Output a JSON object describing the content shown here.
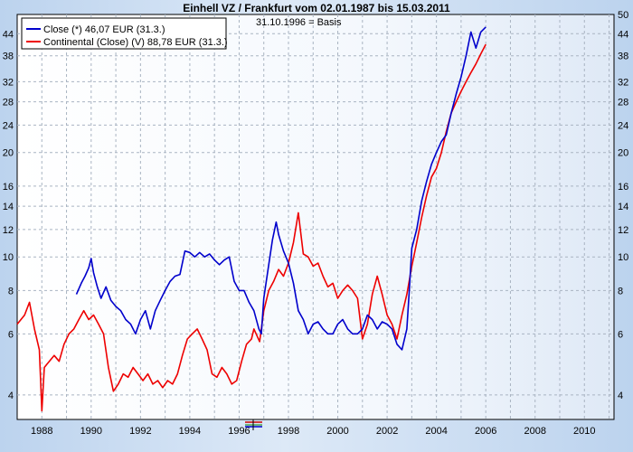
{
  "chart_data": {
    "type": "line",
    "title": "Einhell VZ / Frankfurt vom 02.01.1987 bis 15.03.2011",
    "annotation": "31.10.1996 = Basis",
    "y_scale": "log",
    "ylim": [
      3.4,
      50
    ],
    "xlim": [
      1987.0,
      2011.2
    ],
    "grid": true,
    "legend": "top-left",
    "x_ticks": [
      "1988",
      "1990",
      "1992",
      "1994",
      "1996",
      "1998",
      "2000",
      "2002",
      "2004",
      "2006",
      "2008",
      "2010"
    ],
    "y_ticks_left": [
      "4",
      "6",
      "8",
      "10",
      "12",
      "14",
      "16",
      "20",
      "24",
      "28",
      "32",
      "38",
      "44"
    ],
    "y_ticks_right": [
      "4",
      "6",
      "8",
      "10",
      "12",
      "14",
      "16",
      "20",
      "24",
      "28",
      "32",
      "38",
      "44",
      "50"
    ],
    "series": [
      {
        "name": "Close (*) 46,07 EUR (31.3.)",
        "color": "#0000cc",
        "x": [
          1989.4,
          1989.6,
          1989.75,
          1989.9,
          1990.0,
          1990.1,
          1990.25,
          1990.4,
          1990.6,
          1990.8,
          1991.0,
          1991.2,
          1991.4,
          1991.6,
          1991.8,
          1992.0,
          1992.2,
          1992.4,
          1992.6,
          1992.8,
          1993.0,
          1993.2,
          1993.4,
          1993.6,
          1993.8,
          1994.0,
          1994.2,
          1994.4,
          1994.6,
          1994.8,
          1995.0,
          1995.2,
          1995.4,
          1995.6,
          1995.8,
          1996.0,
          1996.2,
          1996.4,
          1996.6,
          1996.8,
          1996.9,
          1997.0,
          1997.2,
          1997.35,
          1997.5,
          1997.6,
          1997.8,
          1998.0,
          1998.2,
          1998.4,
          1998.6,
          1998.8,
          1999.0,
          1999.2,
          1999.4,
          1999.6,
          1999.8,
          2000.0,
          2000.2,
          2000.4,
          2000.6,
          2000.8,
          2001.0,
          2001.2,
          2001.4,
          2001.6,
          2001.8,
          2002.0,
          2002.2,
          2002.4,
          2002.6,
          2002.8,
          2002.9,
          2003.0,
          2003.2,
          2003.4,
          2003.6,
          2003.8,
          2004.0,
          2004.2,
          2004.4,
          2004.6,
          2004.8,
          2005.0,
          2005.2,
          2005.4,
          2005.6,
          2005.8,
          2006.0
        ],
        "y": [
          7.8,
          8.4,
          8.8,
          9.3,
          9.9,
          9.0,
          8.2,
          7.6,
          8.2,
          7.5,
          7.2,
          7.0,
          6.6,
          6.4,
          6.0,
          6.6,
          7.0,
          6.2,
          7.0,
          7.5,
          8.0,
          8.5,
          8.8,
          8.9,
          10.4,
          10.3,
          10.0,
          10.3,
          10.0,
          10.2,
          9.8,
          9.5,
          9.8,
          10.0,
          8.5,
          8.0,
          8.0,
          7.4,
          7.0,
          6.2,
          6.0,
          7.6,
          9.5,
          11.2,
          12.6,
          11.6,
          10.4,
          9.6,
          8.4,
          7.0,
          6.6,
          6.0,
          6.4,
          6.5,
          6.2,
          6.0,
          6.0,
          6.4,
          6.6,
          6.2,
          6.0,
          6.0,
          6.2,
          6.8,
          6.6,
          6.2,
          6.5,
          6.4,
          6.2,
          5.6,
          5.4,
          6.2,
          8.0,
          10.6,
          12.0,
          14.5,
          16.5,
          18.5,
          20.0,
          21.5,
          22.5,
          26.0,
          29.5,
          33.0,
          38.0,
          44.5,
          40.0,
          44.5,
          46.0
        ]
      },
      {
        "name": "Continental (Close) (V) 88,78 EUR (31.3.)",
        "color": "#ee0000",
        "x": [
          1987.0,
          1987.3,
          1987.5,
          1987.7,
          1987.9,
          1988.0,
          1988.1,
          1988.2,
          1988.5,
          1988.7,
          1988.9,
          1989.1,
          1989.3,
          1989.5,
          1989.7,
          1989.9,
          1990.1,
          1990.3,
          1990.5,
          1990.7,
          1990.9,
          1991.1,
          1991.3,
          1991.5,
          1991.7,
          1991.9,
          1992.1,
          1992.3,
          1992.5,
          1992.7,
          1992.9,
          1993.1,
          1993.3,
          1993.5,
          1993.7,
          1993.9,
          1994.1,
          1994.3,
          1994.5,
          1994.7,
          1994.9,
          1995.1,
          1995.3,
          1995.5,
          1995.7,
          1995.9,
          1996.1,
          1996.3,
          1996.5,
          1996.6,
          1996.83,
          1997.0,
          1997.2,
          1997.4,
          1997.6,
          1997.8,
          1998.0,
          1998.2,
          1998.4,
          1998.6,
          1998.8,
          1999.0,
          1999.2,
          1999.4,
          1999.6,
          1999.8,
          2000.0,
          2000.2,
          2000.4,
          2000.6,
          2000.8,
          2001.0,
          2001.2,
          2001.4,
          2001.6,
          2001.8,
          2002.0,
          2002.2,
          2002.4,
          2002.6,
          2002.8,
          2003.0,
          2003.2,
          2003.4,
          2003.6,
          2003.8,
          2004.0,
          2004.2,
          2004.4,
          2004.6,
          2004.8,
          2005.0,
          2005.2,
          2005.4,
          2005.6,
          2005.8,
          2006.0
        ],
        "y": [
          6.4,
          6.8,
          7.4,
          6.2,
          5.4,
          3.6,
          4.8,
          4.9,
          5.2,
          5.0,
          5.6,
          6.0,
          6.2,
          6.6,
          7.0,
          6.6,
          6.8,
          6.4,
          6.0,
          4.8,
          4.1,
          4.3,
          4.6,
          4.5,
          4.8,
          4.6,
          4.4,
          4.6,
          4.3,
          4.4,
          4.2,
          4.4,
          4.3,
          4.6,
          5.2,
          5.8,
          6.0,
          6.2,
          5.8,
          5.4,
          4.6,
          4.5,
          4.8,
          4.6,
          4.3,
          4.4,
          5.0,
          5.6,
          5.8,
          6.2,
          5.7,
          7.0,
          8.0,
          8.5,
          9.2,
          8.8,
          9.6,
          11.0,
          13.4,
          10.2,
          10.0,
          9.4,
          9.6,
          8.8,
          8.2,
          8.4,
          7.6,
          8.0,
          8.3,
          8.0,
          7.6,
          5.8,
          6.4,
          7.8,
          8.8,
          7.8,
          6.8,
          6.4,
          5.8,
          6.8,
          7.8,
          9.4,
          11.0,
          13.0,
          15.0,
          17.0,
          18.0,
          20.0,
          23.0,
          26.0,
          28.0,
          30.0,
          32.0,
          34.0,
          36.0,
          38.5,
          41.0
        ]
      }
    ]
  }
}
